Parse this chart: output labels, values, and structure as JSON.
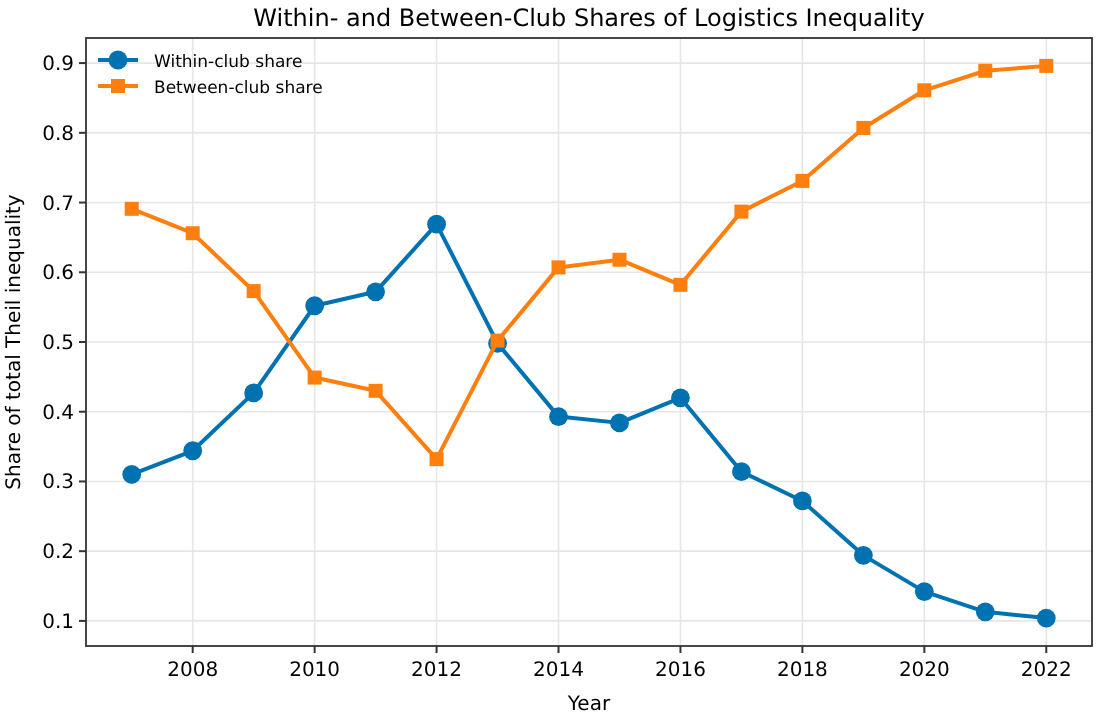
{
  "chart_data": {
    "type": "line",
    "title": "Within- and Between-Club Shares of Logistics Inequality",
    "xlabel": "Year",
    "ylabel": "Share of total Theil inequality",
    "x": [
      2007,
      2008,
      2009,
      2010,
      2011,
      2012,
      2013,
      2014,
      2015,
      2016,
      2017,
      2018,
      2019,
      2020,
      2021,
      2022
    ],
    "series": [
      {
        "name": "Within-club share",
        "color": "#0072b2",
        "marker": "circle",
        "values": [
          0.31,
          0.344,
          0.427,
          0.552,
          0.572,
          0.669,
          0.498,
          0.393,
          0.384,
          0.42,
          0.314,
          0.272,
          0.194,
          0.142,
          0.113,
          0.104
        ]
      },
      {
        "name": "Between-club share",
        "color": "#ff7f0e",
        "marker": "square",
        "values": [
          0.691,
          0.656,
          0.573,
          0.449,
          0.43,
          0.332,
          0.502,
          0.607,
          0.618,
          0.582,
          0.687,
          0.731,
          0.807,
          0.861,
          0.889,
          0.896
        ]
      }
    ],
    "xlim": [
      2006.25,
      2022.75
    ],
    "xticks": [
      2008,
      2010,
      2012,
      2014,
      2016,
      2018,
      2020,
      2022
    ],
    "ylim": [
      0.064,
      0.936
    ],
    "yticks": [
      0.1,
      0.2,
      0.3,
      0.4,
      0.5,
      0.6,
      0.7,
      0.8,
      0.9
    ],
    "grid": true,
    "legend": "top left",
    "line_style": "solid"
  }
}
